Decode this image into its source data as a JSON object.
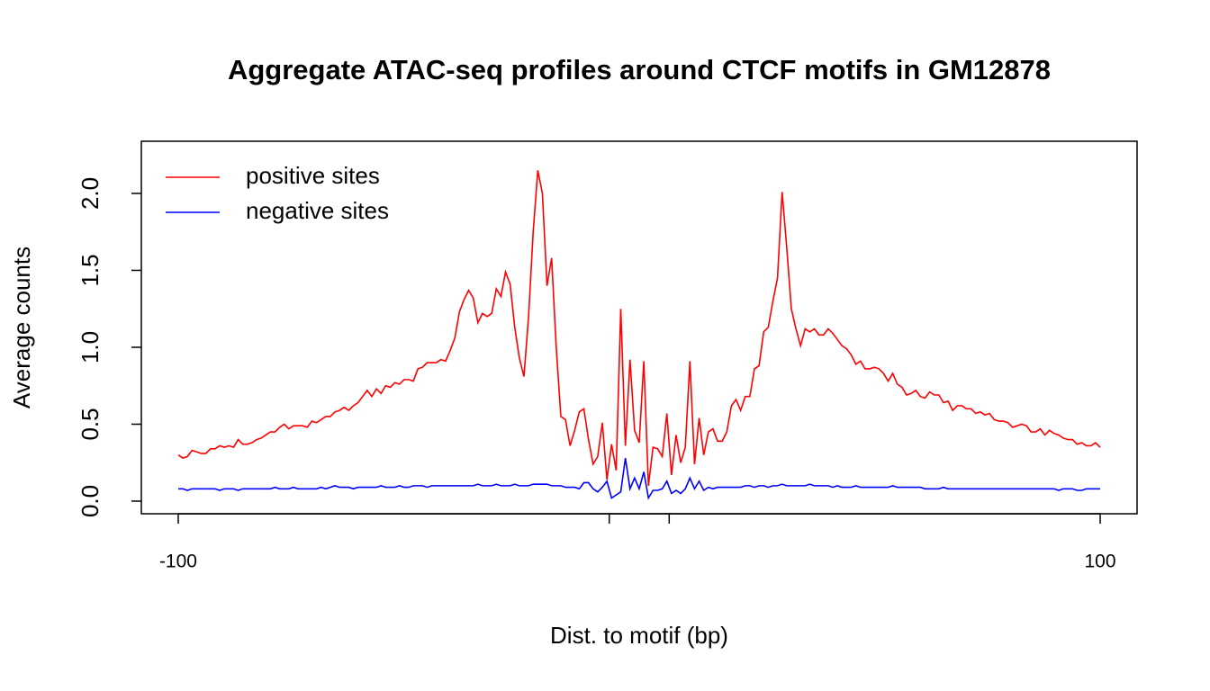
{
  "chart_data": {
    "type": "line",
    "title": "Aggregate ATAC-seq profiles around CTCF motifs in GM12878",
    "xlabel": "Dist. to motif (bp)",
    "ylabel": "Average counts",
    "x": [
      -100,
      -99,
      -98,
      -97,
      -96,
      -95,
      -94,
      -93,
      -92,
      -91,
      -90,
      -89,
      -88,
      -87,
      -86,
      -85,
      -84,
      -83,
      -82,
      -81,
      -80,
      -79,
      -78,
      -77,
      -76,
      -75,
      -74,
      -73,
      -72,
      -71,
      -70,
      -69,
      -68,
      -67,
      -66,
      -65,
      -64,
      -63,
      -62,
      -61,
      -60,
      -59,
      -58,
      -57,
      -56,
      -55,
      -54,
      -53,
      -52,
      -51,
      -50,
      -49,
      -48,
      -47,
      -46,
      -45,
      -44,
      -43,
      -42,
      -41,
      -40,
      -39,
      -38,
      -37,
      -36,
      -35,
      -34,
      -33,
      -32,
      -31,
      -30,
      -29,
      -28,
      -27,
      -26,
      -25,
      -24,
      -23,
      -22,
      -21,
      -20,
      -19,
      -18,
      -17,
      -16,
      -15,
      -14,
      -13,
      -12,
      -11,
      -10,
      -9,
      -8,
      -7,
      -6,
      -5,
      -4,
      -3,
      -2,
      -1,
      0,
      1,
      2,
      3,
      4,
      5,
      6,
      7,
      8,
      9,
      10,
      11,
      12,
      13,
      14,
      15,
      16,
      17,
      18,
      19,
      20,
      21,
      22,
      23,
      24,
      25,
      26,
      27,
      28,
      29,
      30,
      31,
      32,
      33,
      34,
      35,
      36,
      37,
      38,
      39,
      40,
      41,
      42,
      43,
      44,
      45,
      46,
      47,
      48,
      49,
      50,
      51,
      52,
      53,
      54,
      55,
      56,
      57,
      58,
      59,
      60,
      61,
      62,
      63,
      64,
      65,
      66,
      67,
      68,
      69,
      70,
      71,
      72,
      73,
      74,
      75,
      76,
      77,
      78,
      79,
      80,
      81,
      82,
      83,
      84,
      85,
      86,
      87,
      88,
      89,
      90,
      91,
      92,
      93,
      94,
      95,
      96,
      97,
      98,
      99,
      100
    ],
    "series": [
      {
        "name": "positive sites",
        "color": "red",
        "values": [
          0.3,
          0.28,
          0.29,
          0.33,
          0.32,
          0.31,
          0.31,
          0.34,
          0.34,
          0.36,
          0.35,
          0.36,
          0.35,
          0.4,
          0.37,
          0.37,
          0.38,
          0.4,
          0.41,
          0.43,
          0.45,
          0.45,
          0.48,
          0.5,
          0.47,
          0.49,
          0.49,
          0.49,
          0.48,
          0.52,
          0.51,
          0.53,
          0.55,
          0.55,
          0.58,
          0.59,
          0.61,
          0.59,
          0.62,
          0.64,
          0.68,
          0.72,
          0.68,
          0.73,
          0.7,
          0.75,
          0.74,
          0.77,
          0.76,
          0.79,
          0.79,
          0.78,
          0.86,
          0.87,
          0.9,
          0.9,
          0.9,
          0.92,
          0.91,
          0.98,
          1.06,
          1.23,
          1.31,
          1.37,
          1.32,
          1.16,
          1.22,
          1.2,
          1.22,
          1.38,
          1.33,
          1.49,
          1.41,
          1.13,
          0.93,
          0.81,
          1.2,
          1.75,
          2.15,
          2.0,
          1.4,
          1.58,
          1.0,
          0.55,
          0.53,
          0.36,
          0.46,
          0.58,
          0.6,
          0.4,
          0.24,
          0.29,
          0.51,
          0.14,
          0.37,
          0.2,
          1.25,
          0.36,
          0.92,
          0.46,
          0.38,
          0.91,
          0.1,
          0.35,
          0.34,
          0.29,
          0.57,
          0.17,
          0.43,
          0.25,
          0.35,
          0.91,
          0.24,
          0.54,
          0.3,
          0.45,
          0.47,
          0.39,
          0.39,
          0.45,
          0.62,
          0.66,
          0.59,
          0.68,
          0.68,
          0.86,
          0.88,
          1.1,
          1.13,
          1.3,
          1.45,
          2.01,
          1.65,
          1.25,
          1.12,
          1.01,
          1.12,
          1.1,
          1.12,
          1.08,
          1.08,
          1.12,
          1.09,
          1.05,
          1.01,
          0.99,
          0.95,
          0.89,
          0.91,
          0.86,
          0.86,
          0.87,
          0.86,
          0.83,
          0.78,
          0.83,
          0.76,
          0.74,
          0.69,
          0.7,
          0.72,
          0.68,
          0.67,
          0.71,
          0.69,
          0.69,
          0.64,
          0.65,
          0.59,
          0.62,
          0.62,
          0.6,
          0.6,
          0.57,
          0.58,
          0.56,
          0.57,
          0.53,
          0.52,
          0.52,
          0.51,
          0.48,
          0.49,
          0.5,
          0.49,
          0.45,
          0.45,
          0.47,
          0.43,
          0.46,
          0.44,
          0.43,
          0.41,
          0.4,
          0.4,
          0.37,
          0.38,
          0.36,
          0.36,
          0.38,
          0.35
        ]
      },
      {
        "name": "negative sites",
        "color": "blue",
        "values": [
          0.08,
          0.08,
          0.07,
          0.08,
          0.08,
          0.08,
          0.08,
          0.08,
          0.08,
          0.07,
          0.08,
          0.08,
          0.08,
          0.07,
          0.08,
          0.08,
          0.08,
          0.08,
          0.08,
          0.08,
          0.08,
          0.09,
          0.08,
          0.08,
          0.08,
          0.09,
          0.08,
          0.08,
          0.08,
          0.08,
          0.08,
          0.09,
          0.08,
          0.09,
          0.1,
          0.09,
          0.09,
          0.09,
          0.08,
          0.09,
          0.09,
          0.09,
          0.09,
          0.09,
          0.1,
          0.09,
          0.09,
          0.09,
          0.1,
          0.09,
          0.09,
          0.1,
          0.1,
          0.1,
          0.09,
          0.1,
          0.1,
          0.1,
          0.1,
          0.1,
          0.1,
          0.1,
          0.1,
          0.1,
          0.1,
          0.11,
          0.1,
          0.1,
          0.1,
          0.11,
          0.1,
          0.1,
          0.1,
          0.11,
          0.1,
          0.1,
          0.1,
          0.11,
          0.11,
          0.11,
          0.11,
          0.1,
          0.1,
          0.1,
          0.09,
          0.09,
          0.09,
          0.08,
          0.12,
          0.12,
          0.08,
          0.06,
          0.09,
          0.13,
          0.02,
          0.04,
          0.06,
          0.28,
          0.08,
          0.15,
          0.08,
          0.19,
          0.02,
          0.07,
          0.07,
          0.08,
          0.13,
          0.05,
          0.07,
          0.05,
          0.08,
          0.15,
          0.08,
          0.13,
          0.07,
          0.09,
          0.08,
          0.09,
          0.09,
          0.09,
          0.09,
          0.09,
          0.09,
          0.1,
          0.1,
          0.09,
          0.1,
          0.1,
          0.09,
          0.1,
          0.1,
          0.11,
          0.1,
          0.1,
          0.1,
          0.1,
          0.1,
          0.11,
          0.1,
          0.1,
          0.1,
          0.1,
          0.09,
          0.1,
          0.09,
          0.09,
          0.09,
          0.1,
          0.09,
          0.09,
          0.09,
          0.09,
          0.09,
          0.09,
          0.09,
          0.1,
          0.09,
          0.09,
          0.09,
          0.09,
          0.09,
          0.09,
          0.08,
          0.08,
          0.08,
          0.08,
          0.09,
          0.08,
          0.08,
          0.08,
          0.08,
          0.08,
          0.08,
          0.08,
          0.08,
          0.08,
          0.08,
          0.08,
          0.08,
          0.08,
          0.08,
          0.08,
          0.08,
          0.08,
          0.08,
          0.08,
          0.08,
          0.08,
          0.08,
          0.08,
          0.08,
          0.07,
          0.08,
          0.08,
          0.08,
          0.07,
          0.07,
          0.08,
          0.08,
          0.08,
          0.08
        ]
      }
    ],
    "xlim": [
      -108,
      108
    ],
    "xticks": [
      -100,
      100
    ],
    "xminor_ticks": [
      -6.5,
      6.5
    ],
    "ylim": [
      -0.082,
      2.339
    ],
    "yticks": [
      {
        "value": 0,
        "label": "0.0"
      },
      0.5,
      {
        "value": 1,
        "label": "1.0"
      },
      1.5,
      {
        "value": 2,
        "label": "2.0"
      }
    ],
    "legend": "top-left"
  }
}
